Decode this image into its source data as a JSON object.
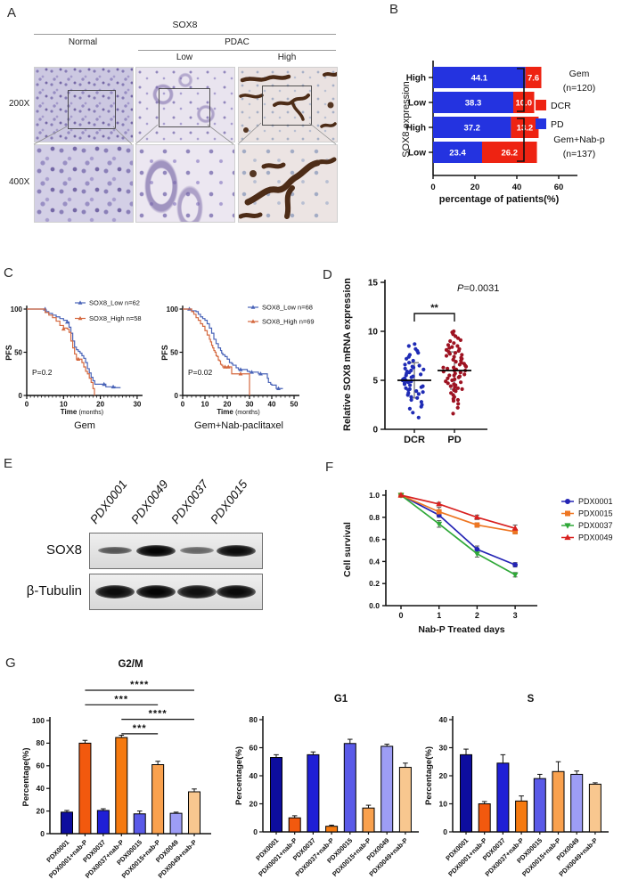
{
  "panel_letters": {
    "A": "A",
    "B": "B",
    "C": "C",
    "D": "D",
    "E": "E",
    "F": "F",
    "G": "G"
  },
  "panelA": {
    "header": "SOX8",
    "group_normal": "Normal",
    "group_pdac": "PDAC",
    "sub_low": "Low",
    "sub_high": "High",
    "row_200x": "200X",
    "row_400x": "400X"
  },
  "panelE": {
    "lanes": [
      "PDX0001",
      "PDX0049",
      "PDX0037",
      "PDX0015"
    ],
    "bands": [
      {
        "label": "SOX8",
        "intensities": [
          0.45,
          1.0,
          0.32,
          0.95
        ]
      },
      {
        "label": "β-Tubulin",
        "intensities": [
          0.95,
          1.0,
          0.92,
          0.97
        ]
      }
    ]
  },
  "chart_data": [
    {
      "id": "B",
      "type": "bar",
      "orientation": "horizontal",
      "stacked": true,
      "y_axis_label": "SOX8 expression",
      "x_axis_label": "percentage of patients(%)",
      "xticks": [
        0,
        20,
        40,
        60
      ],
      "categories": [
        "High",
        "Low",
        "High",
        "Low"
      ],
      "series": [
        {
          "name": "PD",
          "color": "#2433e0",
          "values": [
            44.1,
            38.3,
            37.2,
            23.4
          ]
        },
        {
          "name": "DCR",
          "color": "#ee2312",
          "values": [
            7.6,
            10.0,
            13.2,
            26.2
          ]
        }
      ],
      "value_labels": [
        [
          "44.1",
          "7.6"
        ],
        [
          "38.3",
          "10.0"
        ],
        [
          "37.2",
          "13.2"
        ],
        [
          "23.4",
          "26.2"
        ]
      ],
      "legend": [
        {
          "label": "DCR",
          "color": "#ee2312"
        },
        {
          "label": "PD",
          "color": "#2433e0"
        }
      ],
      "brackets": [
        {
          "lines": [
            "Gem",
            "(n=120)"
          ],
          "rows": [
            0,
            1
          ]
        },
        {
          "lines": [
            "Gem+Nab-p",
            "(n=137)"
          ],
          "rows": [
            2,
            3
          ]
        }
      ]
    },
    {
      "id": "C1",
      "type": "line",
      "subtype": "kaplan-meier",
      "title": "Gem",
      "p_text": "P=0.2",
      "y_label": "PFS",
      "x_label_bold": "Time",
      "x_label_unit": "(months)",
      "xticks": [
        0,
        10,
        20,
        30
      ],
      "yticks": [
        0,
        50,
        100
      ],
      "xmax": 30,
      "series": [
        {
          "name": "SOX8_Low  n=62",
          "color": "#4a64b8",
          "points": [
            [
              0,
              100
            ],
            [
              3,
              100
            ],
            [
              5,
              97
            ],
            [
              6,
              95
            ],
            [
              7,
              93
            ],
            [
              8,
              91
            ],
            [
              9,
              89
            ],
            [
              10,
              87
            ],
            [
              11,
              85
            ],
            [
              11.5,
              79
            ],
            [
              12,
              72
            ],
            [
              12.5,
              63
            ],
            [
              13,
              56
            ],
            [
              13.5,
              53
            ],
            [
              14,
              51
            ],
            [
              14.5,
              49
            ],
            [
              15,
              46
            ],
            [
              15.5,
              43
            ],
            [
              16,
              38
            ],
            [
              16.5,
              31
            ],
            [
              17,
              26
            ],
            [
              17.5,
              21
            ],
            [
              18,
              17
            ],
            [
              18.5,
              13
            ],
            [
              21,
              13
            ],
            [
              21.5,
              10
            ],
            [
              23.5,
              10
            ],
            [
              24,
              9
            ],
            [
              25.5,
              9
            ]
          ],
          "marks": [
            [
              5,
              100
            ],
            [
              11,
              85
            ],
            [
              21,
              13
            ],
            [
              23.5,
              10
            ]
          ]
        },
        {
          "name": "SOX8_High n=58",
          "color": "#d4683f",
          "points": [
            [
              0,
              100
            ],
            [
              3.5,
              100
            ],
            [
              5,
              96
            ],
            [
              6,
              93
            ],
            [
              7,
              90
            ],
            [
              8,
              86
            ],
            [
              9,
              81
            ],
            [
              10,
              78
            ],
            [
              11,
              77
            ],
            [
              11.5,
              73
            ],
            [
              12,
              63
            ],
            [
              12.5,
              55
            ],
            [
              13,
              48
            ],
            [
              13.5,
              42
            ],
            [
              14.5,
              42
            ],
            [
              15,
              38
            ],
            [
              15.5,
              33
            ],
            [
              16,
              28
            ],
            [
              16.5,
              25
            ],
            [
              17,
              20
            ],
            [
              17.5,
              15
            ],
            [
              18,
              8
            ],
            [
              18.4,
              0
            ]
          ],
          "marks": [
            [
              10,
              77
            ],
            [
              14,
              42
            ]
          ]
        }
      ]
    },
    {
      "id": "C2",
      "type": "line",
      "subtype": "kaplan-meier",
      "title": "Gem+Nab-paclitaxel",
      "p_text": "P=0.02",
      "y_label": "PFS",
      "x_label_bold": "Time",
      "x_label_unit": "(months)",
      "xticks": [
        0,
        10,
        20,
        30,
        40,
        50
      ],
      "yticks": [
        0,
        50,
        100
      ],
      "xmax": 50,
      "series": [
        {
          "name": "SOX8_Low  n=68",
          "color": "#4a64b8",
          "points": [
            [
              0,
              100
            ],
            [
              3,
              100
            ],
            [
              4,
              98
            ],
            [
              6,
              97
            ],
            [
              7,
              94
            ],
            [
              8,
              91
            ],
            [
              9,
              89
            ],
            [
              10,
              87
            ],
            [
              11,
              83
            ],
            [
              12,
              78
            ],
            [
              13,
              72
            ],
            [
              14,
              65
            ],
            [
              15,
              60
            ],
            [
              16,
              55
            ],
            [
              17,
              52
            ],
            [
              17.5,
              49
            ],
            [
              18,
              47
            ],
            [
              19,
              45
            ],
            [
              20,
              42
            ],
            [
              21,
              38
            ],
            [
              22,
              37
            ],
            [
              22.5,
              35
            ],
            [
              24,
              32
            ],
            [
              25,
              30
            ],
            [
              28,
              30
            ],
            [
              29,
              28
            ],
            [
              30,
              27
            ],
            [
              33,
              27
            ],
            [
              34,
              25
            ],
            [
              37,
              25
            ],
            [
              38,
              20
            ],
            [
              38.5,
              15
            ],
            [
              39.5,
              13
            ],
            [
              40,
              12
            ],
            [
              42,
              8
            ],
            [
              45,
              8
            ]
          ],
          "marks": [
            [
              3,
              100
            ],
            [
              26,
              30
            ],
            [
              31,
              27
            ],
            [
              35,
              25
            ],
            [
              43,
              8
            ]
          ]
        },
        {
          "name": "SOX8_High n=69",
          "color": "#d4683f",
          "points": [
            [
              0,
              100
            ],
            [
              3,
              100
            ],
            [
              4,
              97
            ],
            [
              5,
              94
            ],
            [
              6,
              90
            ],
            [
              7,
              87
            ],
            [
              8,
              83
            ],
            [
              9,
              80
            ],
            [
              10,
              75
            ],
            [
              11,
              70
            ],
            [
              12,
              65
            ],
            [
              12.5,
              62
            ],
            [
              13,
              58
            ],
            [
              13.5,
              55
            ],
            [
              14,
              52
            ],
            [
              14.5,
              50
            ],
            [
              15,
              46
            ],
            [
              15.5,
              45
            ],
            [
              16,
              41
            ],
            [
              16.5,
              40
            ],
            [
              17,
              36
            ],
            [
              17.5,
              35
            ],
            [
              18,
              33
            ],
            [
              21.5,
              33
            ],
            [
              22,
              25
            ],
            [
              30,
              25
            ],
            [
              30,
              0
            ]
          ],
          "marks": [
            [
              19,
              33
            ],
            [
              20.5,
              33
            ],
            [
              26,
              25
            ]
          ]
        }
      ]
    },
    {
      "id": "D",
      "type": "scatter",
      "y_axis_label": "Relative SOX8 mRNA expression",
      "p_prefix": "P",
      "p_value": "=0.0031",
      "sig_label": "**",
      "yticks": [
        0,
        5,
        10,
        15
      ],
      "groups": [
        {
          "label": "DCR",
          "color": "#1f2bb5",
          "mean": 5.0,
          "sd": 1.8,
          "values": [
            1.2,
            1.7,
            2.1,
            2.3,
            2.5,
            2.8,
            3.0,
            3.2,
            3.3,
            3.5,
            3.6,
            3.7,
            3.8,
            3.9,
            4.0,
            4.1,
            4.2,
            4.3,
            4.4,
            4.5,
            4.6,
            4.7,
            4.8,
            4.9,
            5.0,
            5.0,
            5.1,
            5.2,
            5.3,
            5.4,
            5.5,
            5.6,
            5.7,
            5.8,
            5.9,
            6.0,
            6.1,
            6.2,
            6.3,
            6.4,
            6.5,
            6.6,
            6.8,
            7.0,
            7.2,
            7.4,
            7.6,
            7.8,
            8.0,
            8.2,
            8.5,
            8.7
          ]
        },
        {
          "label": "PD",
          "color": "#9e1322",
          "mean": 6.0,
          "sd": 1.9,
          "values": [
            1.6,
            2.2,
            2.6,
            2.9,
            3.0,
            3.1,
            3.3,
            3.5,
            3.7,
            3.9,
            4.0,
            4.1,
            4.2,
            4.3,
            4.4,
            4.5,
            4.6,
            4.7,
            4.8,
            4.9,
            5.0,
            5.1,
            5.2,
            5.3,
            5.4,
            5.5,
            5.5,
            5.6,
            5.7,
            5.8,
            5.9,
            6.0,
            6.0,
            6.1,
            6.2,
            6.3,
            6.3,
            6.4,
            6.5,
            6.6,
            6.7,
            6.8,
            6.9,
            7.0,
            7.1,
            7.2,
            7.3,
            7.4,
            7.5,
            7.6,
            7.7,
            7.8,
            7.9,
            8.0,
            8.1,
            8.2,
            8.3,
            8.4,
            8.5,
            8.6,
            8.8,
            9.0,
            9.1,
            9.3,
            9.5,
            9.7,
            9.9,
            10.0
          ]
        }
      ]
    },
    {
      "id": "F",
      "type": "line",
      "y_axis_label": "Cell survival",
      "x_axis_label": "Nab-P Treated days",
      "x": [
        0,
        1,
        2,
        3
      ],
      "xticks": [
        "0",
        "1",
        "2",
        "3"
      ],
      "yticks": [
        "0.0",
        "0.2",
        "0.4",
        "0.6",
        "0.8",
        "1.0"
      ],
      "ylim": [
        0,
        1
      ],
      "series": [
        {
          "name": "PDX0001",
          "color": "#2424b4",
          "marker": "circle",
          "values": [
            1.0,
            0.82,
            0.51,
            0.37
          ],
          "errors": [
            0,
            0.02,
            0.03,
            0.02
          ]
        },
        {
          "name": "PDX0015",
          "color": "#ee7622",
          "marker": "square",
          "values": [
            1.0,
            0.85,
            0.73,
            0.67
          ],
          "errors": [
            0,
            0.04,
            0.02,
            0.02
          ]
        },
        {
          "name": "PDX0037",
          "color": "#2fa838",
          "marker": "tri-down",
          "values": [
            1.0,
            0.74,
            0.47,
            0.28
          ],
          "errors": [
            0,
            0.03,
            0.03,
            0.02
          ]
        },
        {
          "name": "PDX0049",
          "color": "#d8201f",
          "marker": "tri-up",
          "values": [
            1.0,
            0.92,
            0.8,
            0.7
          ],
          "errors": [
            0,
            0.015,
            0.02,
            0.03
          ]
        }
      ]
    },
    {
      "id": "G1",
      "type": "bar",
      "title": "G2/M",
      "y_axis_label": "Percentage(%)",
      "ylim": [
        0,
        100
      ],
      "yticks": [
        0,
        20,
        40,
        60,
        80,
        100
      ],
      "categories": [
        "PDX0001",
        "PDX0001+nab-P",
        "PDX0037",
        "PDX0037+nab-P",
        "PDX00015",
        "PDX0015+nab-P",
        "PDX0049",
        "PDX0049+nab-P"
      ],
      "values": [
        19,
        80,
        20.5,
        85,
        17.5,
        61,
        18,
        37
      ],
      "errors": [
        1.5,
        2.5,
        1.5,
        2,
        2.5,
        3,
        1,
        2.5
      ],
      "bar_colors": [
        "#0d0d9e",
        "#f2590e",
        "#1f1fd6",
        "#f57a10",
        "#5a5ae8",
        "#f9a14e",
        "#9d9df5",
        "#f8c78f"
      ],
      "comparisons": [
        {
          "from": 1,
          "to": 7,
          "stars": "****"
        },
        {
          "from": 1,
          "to": 5,
          "stars": "***"
        },
        {
          "from": 3,
          "to": 7,
          "stars": "****"
        },
        {
          "from": 3,
          "to": 5,
          "stars": "***"
        }
      ]
    },
    {
      "id": "G2",
      "type": "bar",
      "title": "G1",
      "y_axis_label": "Percentage(%)",
      "ylim": [
        0,
        80
      ],
      "yticks": [
        0,
        20,
        40,
        60,
        80
      ],
      "categories": [
        "PDX0001",
        "PDX0001+nab-P",
        "PDX0037",
        "PDX0037+nab-P",
        "PDX00015",
        "PDX0015+nab-P",
        "PDX0049",
        "PDX0049+nab-P"
      ],
      "values": [
        53,
        10,
        55,
        4,
        63,
        17,
        61,
        46
      ],
      "errors": [
        2,
        1.5,
        2,
        0.8,
        3,
        2,
        1.5,
        3
      ],
      "bar_colors": [
        "#0d0d9e",
        "#f2590e",
        "#1f1fd6",
        "#f57a10",
        "#5a5ae8",
        "#f9a14e",
        "#9d9df5",
        "#f8c78f"
      ]
    },
    {
      "id": "G3",
      "type": "bar",
      "title": "S",
      "y_axis_label": "Percentage(%)",
      "ylim": [
        0,
        40
      ],
      "yticks": [
        0,
        10,
        20,
        30,
        40
      ],
      "categories": [
        "PDX0001",
        "PDX0001+nab-P",
        "PDX0037",
        "PDX0037+nab-P",
        "PDX00015",
        "PDX0015+nab-P",
        "PDX0049",
        "PDX0049+nab-P"
      ],
      "values": [
        27.5,
        10,
        24.5,
        11,
        19,
        21.5,
        20.5,
        17
      ],
      "errors": [
        2,
        0.8,
        3,
        1.8,
        1.5,
        3.5,
        1.2,
        0.5
      ],
      "bar_colors": [
        "#0d0d9e",
        "#f2590e",
        "#1f1fd6",
        "#f57a10",
        "#5a5ae8",
        "#f9a14e",
        "#9d9df5",
        "#f8c78f"
      ]
    }
  ]
}
